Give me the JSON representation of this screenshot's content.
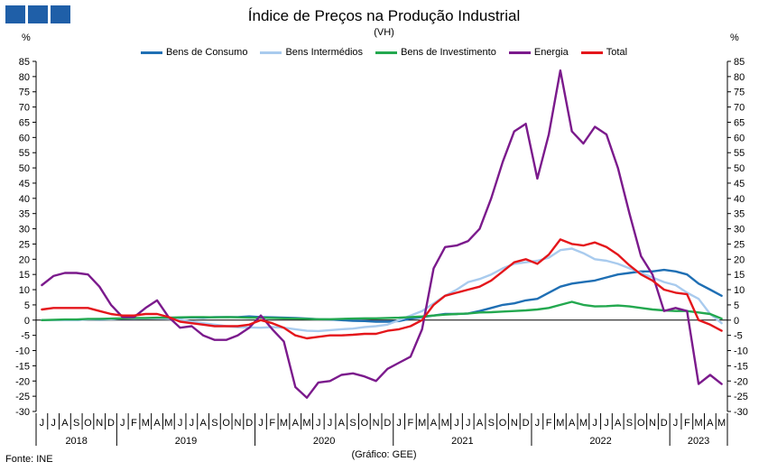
{
  "header": {
    "title": "Índice de Preços na Produção Industrial",
    "subtitle": "(VH)",
    "unit_left": "%",
    "unit_right": "%"
  },
  "footer": {
    "source": "Fonte: INE",
    "credit": "(Gráfico: GEE)"
  },
  "chart_data": {
    "type": "line",
    "title": "Índice de Preços na Produção Industrial",
    "subtitle": "(VH)",
    "ylabel": "%",
    "ylim": [
      -30,
      85
    ],
    "ytick_step": 5,
    "grid": false,
    "legend_position": "top",
    "x_months": [
      "J",
      "J",
      "A",
      "S",
      "O",
      "N",
      "D",
      "J",
      "F",
      "M",
      "A",
      "M",
      "J",
      "J",
      "A",
      "S",
      "O",
      "N",
      "D",
      "J",
      "F",
      "M",
      "A",
      "M",
      "J",
      "J",
      "A",
      "S",
      "O",
      "N",
      "D",
      "J",
      "F",
      "M",
      "A",
      "M",
      "J",
      "J",
      "A",
      "S",
      "O",
      "N",
      "D",
      "J",
      "F",
      "M",
      "A",
      "M",
      "J",
      "J",
      "A",
      "S",
      "O",
      "N",
      "D",
      "J",
      "F",
      "M",
      "A",
      "M"
    ],
    "x_years": [
      {
        "label": "2018",
        "start": 0,
        "count": 7
      },
      {
        "label": "2019",
        "start": 7,
        "count": 12
      },
      {
        "label": "2020",
        "start": 19,
        "count": 12
      },
      {
        "label": "2021",
        "start": 31,
        "count": 12
      },
      {
        "label": "2022",
        "start": 43,
        "count": 12
      },
      {
        "label": "2023",
        "start": 55,
        "count": 5
      }
    ],
    "series": [
      {
        "name": "Bens de Consumo",
        "color": "#1f6fb4",
        "values": [
          0,
          0,
          0,
          0,
          0.3,
          0.2,
          0.3,
          0.5,
          0.5,
          0.6,
          0.6,
          0.7,
          0.8,
          0.9,
          0.8,
          1.0,
          1.0,
          1.0,
          1.2,
          1.0,
          0.9,
          0.8,
          0.7,
          0.5,
          0.3,
          0.2,
          0,
          -0.2,
          -0.3,
          -0.5,
          -0.5,
          -0.3,
          0.5,
          1.0,
          1.5,
          2.0,
          2.0,
          2.2,
          3.0,
          4.0,
          5.0,
          5.5,
          6.5,
          7.0,
          9.0,
          11.0,
          12.0,
          12.5,
          13.0,
          14.0,
          15.0,
          15.5,
          16.0,
          16.0,
          16.5,
          16.0,
          15.0,
          12.0,
          10.0,
          8.0
        ]
      },
      {
        "name": "Bens Intermédios",
        "color": "#a9cbee",
        "values": [
          0,
          0,
          0,
          0,
          0.3,
          0.4,
          0.3,
          0.6,
          0.5,
          0.6,
          0.5,
          0.4,
          0.1,
          -0.5,
          -1.0,
          -1.5,
          -2.0,
          -2.3,
          -2.4,
          -2.5,
          -2.3,
          -2.5,
          -3.0,
          -3.5,
          -3.6,
          -3.3,
          -3.0,
          -2.8,
          -2.3,
          -2.0,
          -1.5,
          0,
          1.5,
          3.0,
          5.5,
          8.0,
          10.0,
          12.5,
          13.5,
          15.0,
          17.0,
          18.5,
          19.0,
          19.5,
          20.5,
          23.0,
          23.5,
          22.0,
          20.0,
          19.5,
          18.5,
          17.0,
          15.5,
          14.0,
          12.5,
          11.5,
          9.0,
          7.0,
          2.0,
          -1.0
        ]
      },
      {
        "name": "Bens de Investimento",
        "color": "#23a84f",
        "values": [
          0,
          0.1,
          0.2,
          0.2,
          0.4,
          0.4,
          0.5,
          0.6,
          0.7,
          0.7,
          0.8,
          0.8,
          0.9,
          1.0,
          1.0,
          0.9,
          1.0,
          0.9,
          0.8,
          0.8,
          0.7,
          0.6,
          0.5,
          0.4,
          0.3,
          0.3,
          0.4,
          0.5,
          0.6,
          0.6,
          0.7,
          0.8,
          1.0,
          1.2,
          1.5,
          1.8,
          2.0,
          2.2,
          2.5,
          2.6,
          2.8,
          3.0,
          3.2,
          3.5,
          4.0,
          5.0,
          6.0,
          5.0,
          4.5,
          4.6,
          4.8,
          4.5,
          4.0,
          3.5,
          3.2,
          3.0,
          3.0,
          2.5,
          2.0,
          0.5
        ]
      },
      {
        "name": "Energia",
        "color": "#7b1a8c",
        "values": [
          11.5,
          14.5,
          15.5,
          15.5,
          15.0,
          11.0,
          5.0,
          1.0,
          1.0,
          4.0,
          6.5,
          1.0,
          -2.5,
          -2.0,
          -5.0,
          -6.5,
          -6.5,
          -5.0,
          -2.5,
          1.5,
          -3.0,
          -7.0,
          -22.0,
          -25.5,
          -20.5,
          -20.0,
          -18.0,
          -17.5,
          -18.5,
          -20.0,
          -16.0,
          -14.0,
          -12.0,
          -3.0,
          17.0,
          24.0,
          24.5,
          26.0,
          30.0,
          40.0,
          52.0,
          62.0,
          64.5,
          46.5,
          61.0,
          82.0,
          62.0,
          58.0,
          63.5,
          61.0,
          50.0,
          35.0,
          21.0,
          15.0,
          3.0,
          4.0,
          3.0,
          -21.0,
          -18.0,
          -21.0
        ]
      },
      {
        "name": "Total",
        "color": "#e4161b",
        "values": [
          3.5,
          4.0,
          4.0,
          4.0,
          4.0,
          3.0,
          2.0,
          1.5,
          1.5,
          2.0,
          2.0,
          1.0,
          -0.5,
          -1.0,
          -1.5,
          -2.0,
          -2.0,
          -2.0,
          -1.5,
          0,
          -1.0,
          -2.5,
          -5.0,
          -6.0,
          -5.5,
          -5.0,
          -5.0,
          -4.8,
          -4.5,
          -4.5,
          -3.5,
          -3.0,
          -2.0,
          0,
          5.0,
          8.0,
          9.0,
          10.0,
          11.0,
          13.0,
          16.0,
          19.0,
          20.0,
          18.5,
          21.5,
          26.5,
          25.0,
          24.5,
          25.5,
          24.0,
          21.5,
          18.0,
          15.0,
          13.0,
          10.0,
          9.0,
          8.5,
          0,
          -1.5,
          -3.5
        ]
      }
    ]
  }
}
